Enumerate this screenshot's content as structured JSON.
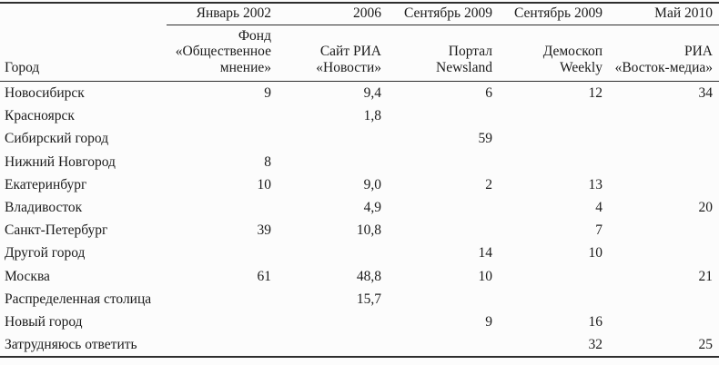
{
  "table": {
    "corner_label": "Город",
    "columns": [
      {
        "period": "Январь 2002",
        "source": [
          "Фонд",
          "«Общественное",
          "мнение»"
        ]
      },
      {
        "period": "2006",
        "source": [
          "Сайт РИА",
          "«Новости»"
        ]
      },
      {
        "period": "Сентябрь 2009",
        "source": [
          "Портал",
          "Newsland"
        ]
      },
      {
        "period": "Сентябрь 2009",
        "source": [
          "Демоскоп",
          "Weekly"
        ]
      },
      {
        "period": "Май 2010",
        "source": [
          "РИА",
          "«Восток-медиа»"
        ]
      }
    ],
    "rows": [
      {
        "city": "Новосибирск",
        "values": [
          "9",
          "9,4",
          "6",
          "12",
          "34"
        ]
      },
      {
        "city": "Красноярск",
        "values": [
          "",
          "1,8",
          "",
          "",
          ""
        ]
      },
      {
        "city": "Сибирский город",
        "values": [
          "",
          "",
          "59",
          "",
          ""
        ]
      },
      {
        "city": "Нижний Новгород",
        "values": [
          "8",
          "",
          "",
          "",
          ""
        ]
      },
      {
        "city": "Екатеринбург",
        "values": [
          "10",
          "9,0",
          "2",
          "13",
          ""
        ]
      },
      {
        "city": "Владивосток",
        "values": [
          "",
          "4,9",
          "",
          "4",
          "20"
        ]
      },
      {
        "city": "Санкт-Петербург",
        "values": [
          "39",
          "10,8",
          "",
          "7",
          ""
        ]
      },
      {
        "city": "Другой город",
        "values": [
          "",
          "",
          "14",
          "10",
          ""
        ]
      },
      {
        "city": "Москва",
        "values": [
          "61",
          "48,8",
          "10",
          "",
          "21"
        ]
      },
      {
        "city": "Распределенная столица",
        "values": [
          "",
          "15,7",
          "",
          "",
          ""
        ]
      },
      {
        "city": "Новый город",
        "values": [
          "",
          "",
          "9",
          "16",
          ""
        ]
      },
      {
        "city": "Затрудняюсь ответить",
        "values": [
          "",
          "",
          "",
          "32",
          "25"
        ]
      }
    ]
  },
  "colors": {
    "background": "#fcfcfc",
    "text": "#1b1b1b",
    "rule": "#2e2e2e"
  }
}
